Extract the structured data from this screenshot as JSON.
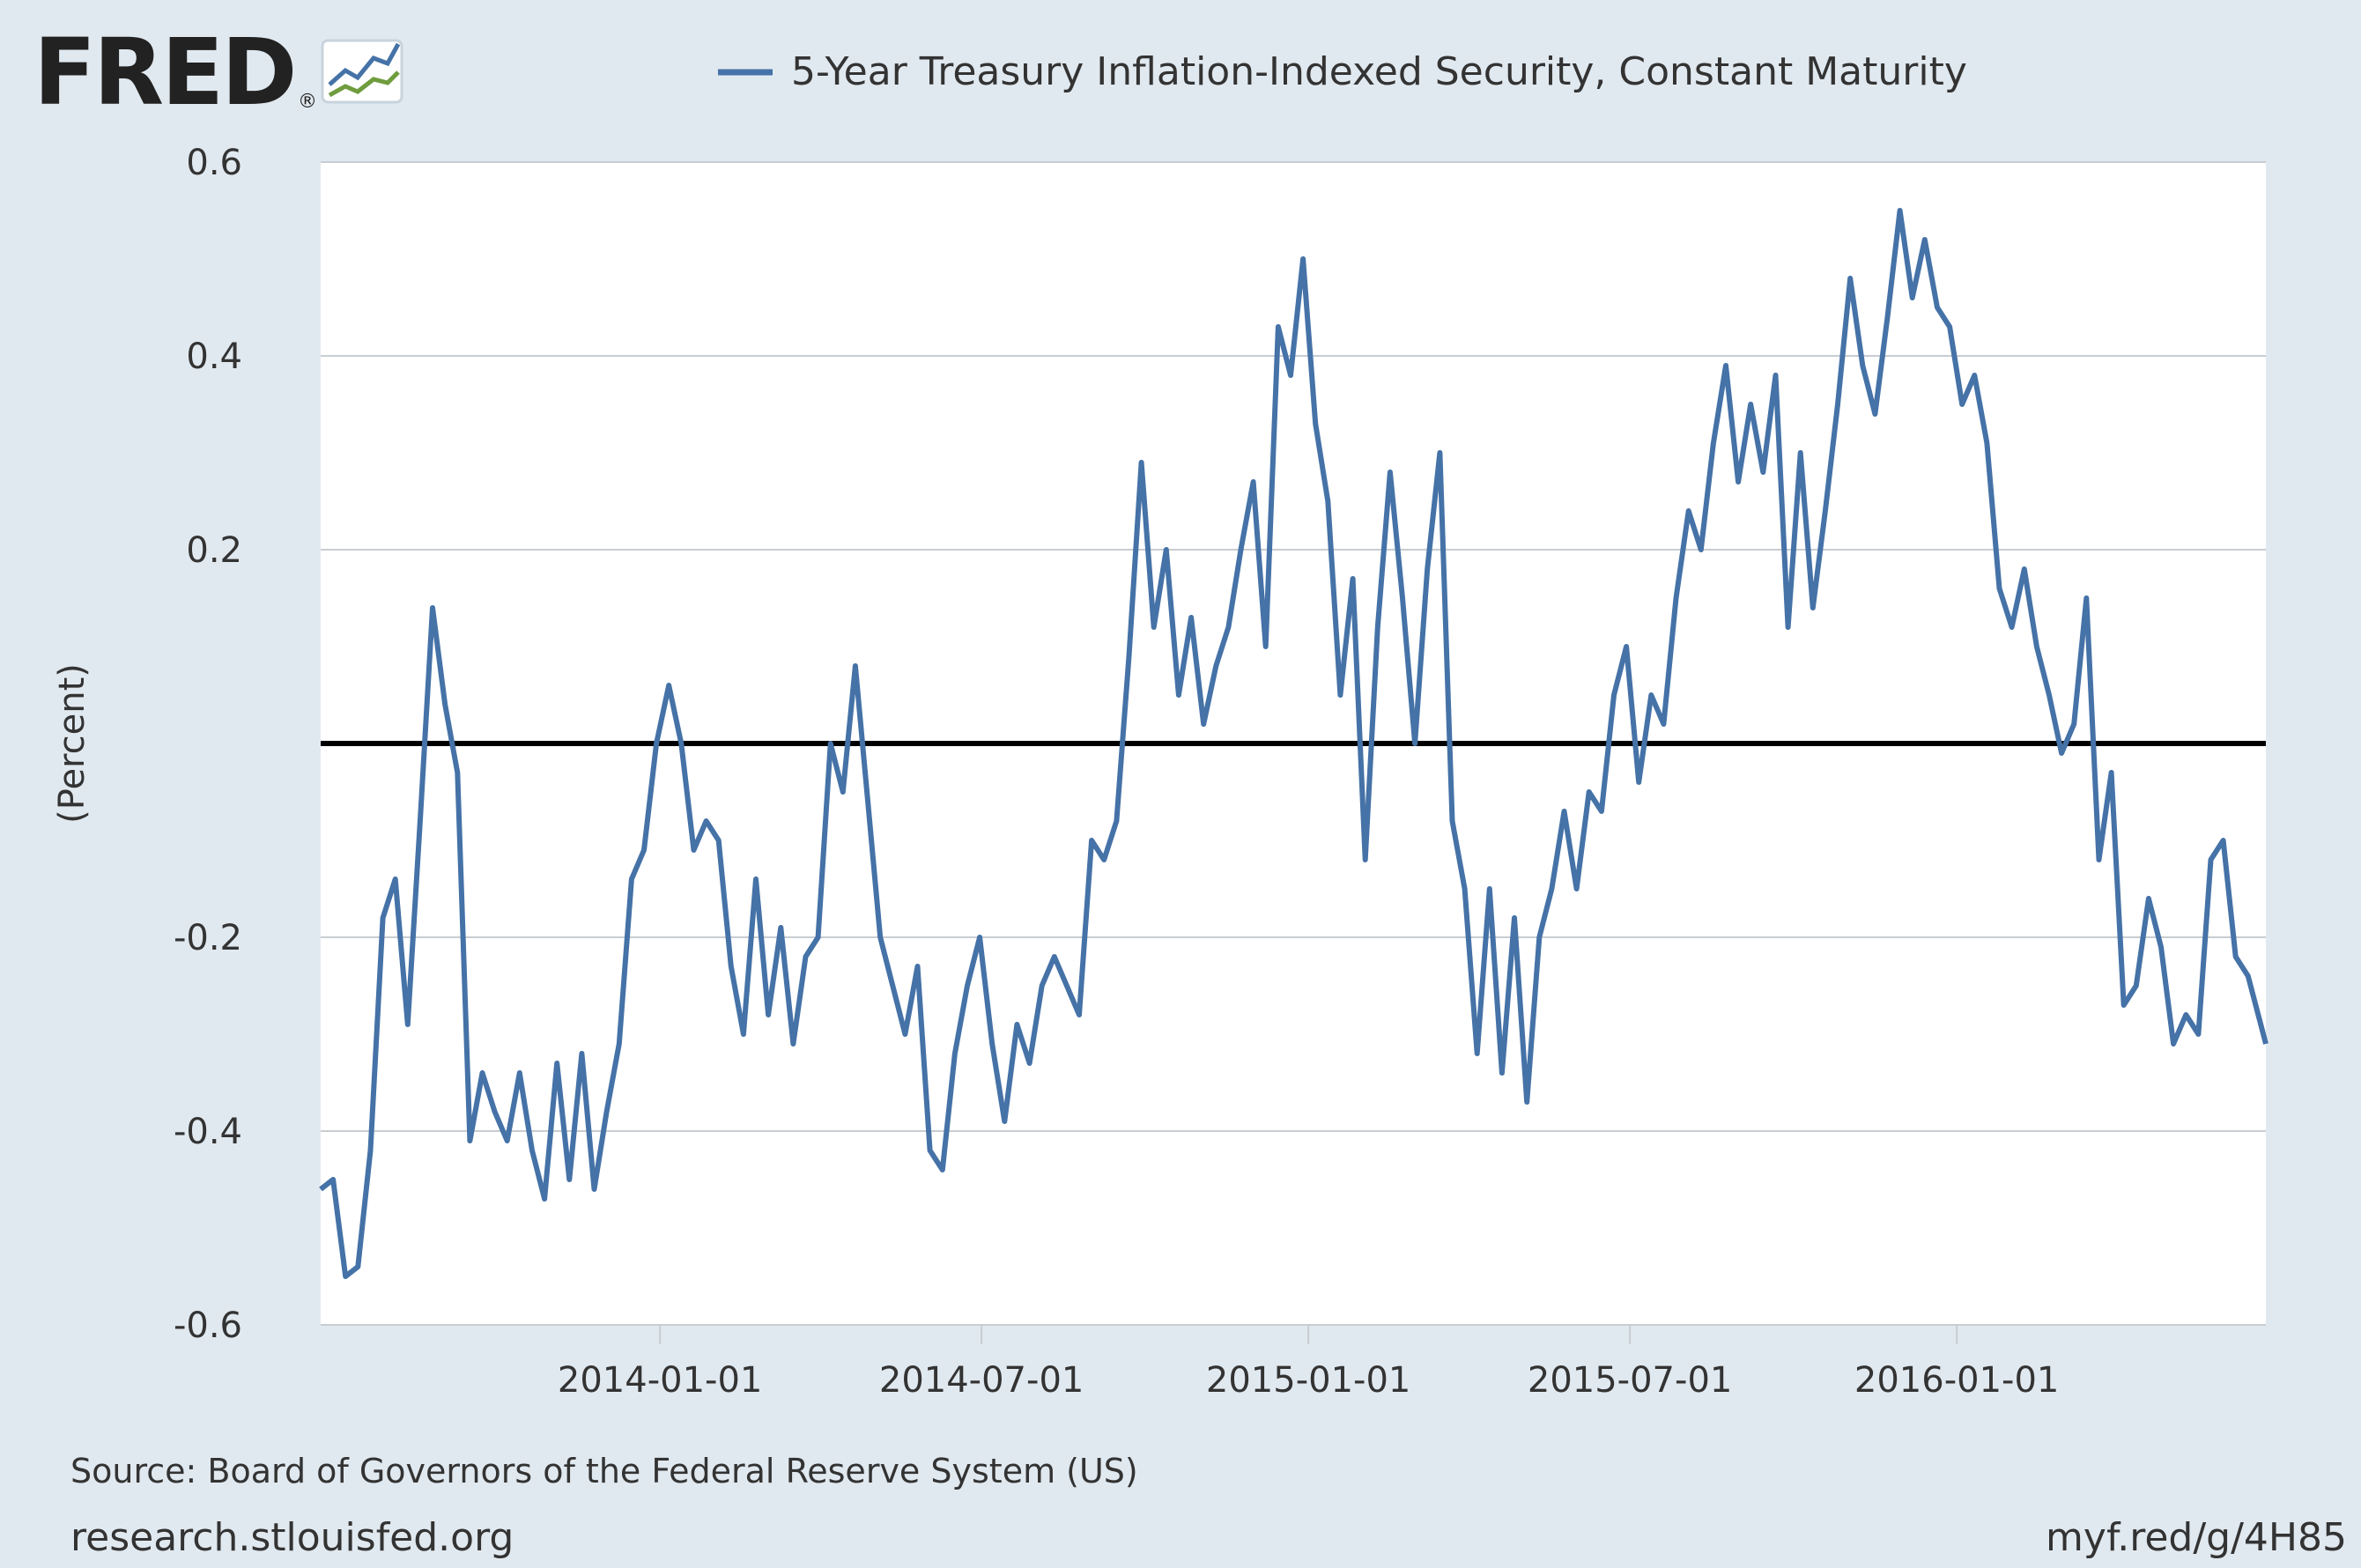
{
  "brand": {
    "name": "FRED",
    "registered_mark": "®"
  },
  "legend": {
    "label": "5-Year Treasury Inflation-Indexed Security, Constant Maturity",
    "color": "#4572a7"
  },
  "source": "Source: Board of Governors of the Federal Reserve System (US)",
  "footer_left": "research.stlouisfed.org",
  "footer_right": "myf.red/g/4H85",
  "chart_data": {
    "type": "line",
    "xlabel": "",
    "ylabel": "(Percent)",
    "ylim": [
      -0.6,
      0.6
    ],
    "yticks": [
      -0.6,
      -0.4,
      -0.2,
      0.2,
      0.4,
      0.6
    ],
    "ytick_labels": [
      "-0.6",
      "-0.4",
      "-0.2",
      "0.2",
      "0.4",
      "0.6"
    ],
    "xlim": [
      "2013-06-24",
      "2016-06-23"
    ],
    "xticks": [
      "2014-01-01",
      "2014-07-01",
      "2015-01-01",
      "2015-07-01",
      "2016-01-01"
    ],
    "zero_line": 0,
    "grid": true,
    "legend_position": "top",
    "series": [
      {
        "color": "#4572a7",
        "points": [
          [
            "2013-06-24",
            -0.46
          ],
          [
            "2013-07-01",
            -0.45
          ],
          [
            "2013-07-08",
            -0.55
          ],
          [
            "2013-07-15",
            -0.54
          ],
          [
            "2013-07-22",
            -0.42
          ],
          [
            "2013-07-29",
            -0.18
          ],
          [
            "2013-08-05",
            -0.14
          ],
          [
            "2013-08-12",
            -0.29
          ],
          [
            "2013-08-19",
            -0.08
          ],
          [
            "2013-08-26",
            0.14
          ],
          [
            "2013-09-02",
            0.04
          ],
          [
            "2013-09-09",
            -0.03
          ],
          [
            "2013-09-16",
            -0.41
          ],
          [
            "2013-09-23",
            -0.34
          ],
          [
            "2013-09-30",
            -0.38
          ],
          [
            "2013-10-07",
            -0.41
          ],
          [
            "2013-10-14",
            -0.34
          ],
          [
            "2013-10-21",
            -0.42
          ],
          [
            "2013-10-28",
            -0.47
          ],
          [
            "2013-11-04",
            -0.33
          ],
          [
            "2013-11-11",
            -0.45
          ],
          [
            "2013-11-18",
            -0.32
          ],
          [
            "2013-11-25",
            -0.46
          ],
          [
            "2013-12-02",
            -0.38
          ],
          [
            "2013-12-09",
            -0.31
          ],
          [
            "2013-12-16",
            -0.14
          ],
          [
            "2013-12-23",
            -0.11
          ],
          [
            "2013-12-30",
            0.0
          ],
          [
            "2014-01-06",
            0.06
          ],
          [
            "2014-01-13",
            0.0
          ],
          [
            "2014-01-20",
            -0.11
          ],
          [
            "2014-01-27",
            -0.08
          ],
          [
            "2014-02-03",
            -0.1
          ],
          [
            "2014-02-10",
            -0.23
          ],
          [
            "2014-02-17",
            -0.3
          ],
          [
            "2014-02-24",
            -0.14
          ],
          [
            "2014-03-03",
            -0.28
          ],
          [
            "2014-03-10",
            -0.19
          ],
          [
            "2014-03-17",
            -0.31
          ],
          [
            "2014-03-24",
            -0.22
          ],
          [
            "2014-03-31",
            -0.2
          ],
          [
            "2014-04-07",
            0.0
          ],
          [
            "2014-04-14",
            -0.05
          ],
          [
            "2014-04-21",
            0.08
          ],
          [
            "2014-04-28",
            -0.06
          ],
          [
            "2014-05-05",
            -0.2
          ],
          [
            "2014-05-12",
            -0.25
          ],
          [
            "2014-05-19",
            -0.3
          ],
          [
            "2014-05-26",
            -0.23
          ],
          [
            "2014-06-02",
            -0.42
          ],
          [
            "2014-06-09",
            -0.44
          ],
          [
            "2014-06-16",
            -0.32
          ],
          [
            "2014-06-23",
            -0.25
          ],
          [
            "2014-06-30",
            -0.2
          ],
          [
            "2014-07-07",
            -0.31
          ],
          [
            "2014-07-14",
            -0.39
          ],
          [
            "2014-07-21",
            -0.29
          ],
          [
            "2014-07-28",
            -0.33
          ],
          [
            "2014-08-04",
            -0.25
          ],
          [
            "2014-08-11",
            -0.22
          ],
          [
            "2014-08-18",
            -0.25
          ],
          [
            "2014-08-25",
            -0.28
          ],
          [
            "2014-09-01",
            -0.1
          ],
          [
            "2014-09-08",
            -0.12
          ],
          [
            "2014-09-15",
            -0.08
          ],
          [
            "2014-09-22",
            0.09
          ],
          [
            "2014-09-29",
            0.29
          ],
          [
            "2014-10-06",
            0.12
          ],
          [
            "2014-10-13",
            0.2
          ],
          [
            "2014-10-20",
            0.05
          ],
          [
            "2014-10-27",
            0.13
          ],
          [
            "2014-11-03",
            0.02
          ],
          [
            "2014-11-10",
            0.08
          ],
          [
            "2014-11-17",
            0.12
          ],
          [
            "2014-11-24",
            0.2
          ],
          [
            "2014-12-01",
            0.27
          ],
          [
            "2014-12-08",
            0.1
          ],
          [
            "2014-12-15",
            0.43
          ],
          [
            "2014-12-22",
            0.38
          ],
          [
            "2014-12-29",
            0.5
          ],
          [
            "2015-01-05",
            0.33
          ],
          [
            "2015-01-12",
            0.25
          ],
          [
            "2015-01-19",
            0.05
          ],
          [
            "2015-01-26",
            0.17
          ],
          [
            "2015-02-02",
            -0.12
          ],
          [
            "2015-02-09",
            0.12
          ],
          [
            "2015-02-16",
            0.28
          ],
          [
            "2015-02-23",
            0.15
          ],
          [
            "2015-03-02",
            0.0
          ],
          [
            "2015-03-09",
            0.18
          ],
          [
            "2015-03-16",
            0.3
          ],
          [
            "2015-03-23",
            -0.08
          ],
          [
            "2015-03-30",
            -0.15
          ],
          [
            "2015-04-06",
            -0.32
          ],
          [
            "2015-04-13",
            -0.15
          ],
          [
            "2015-04-20",
            -0.34
          ],
          [
            "2015-04-27",
            -0.18
          ],
          [
            "2015-05-04",
            -0.37
          ],
          [
            "2015-05-11",
            -0.2
          ],
          [
            "2015-05-18",
            -0.15
          ],
          [
            "2015-05-25",
            -0.07
          ],
          [
            "2015-06-01",
            -0.15
          ],
          [
            "2015-06-08",
            -0.05
          ],
          [
            "2015-06-15",
            -0.07
          ],
          [
            "2015-06-22",
            0.05
          ],
          [
            "2015-06-29",
            0.1
          ],
          [
            "2015-07-06",
            -0.04
          ],
          [
            "2015-07-13",
            0.05
          ],
          [
            "2015-07-20",
            0.02
          ],
          [
            "2015-07-27",
            0.15
          ],
          [
            "2015-08-03",
            0.24
          ],
          [
            "2015-08-10",
            0.2
          ],
          [
            "2015-08-17",
            0.31
          ],
          [
            "2015-08-24",
            0.39
          ],
          [
            "2015-08-31",
            0.27
          ],
          [
            "2015-09-07",
            0.35
          ],
          [
            "2015-09-14",
            0.28
          ],
          [
            "2015-09-21",
            0.38
          ],
          [
            "2015-09-28",
            0.12
          ],
          [
            "2015-10-05",
            0.3
          ],
          [
            "2015-10-12",
            0.14
          ],
          [
            "2015-10-19",
            0.24
          ],
          [
            "2015-10-26",
            0.35
          ],
          [
            "2015-11-02",
            0.48
          ],
          [
            "2015-11-09",
            0.39
          ],
          [
            "2015-11-16",
            0.34
          ],
          [
            "2015-11-23",
            0.44
          ],
          [
            "2015-11-30",
            0.55
          ],
          [
            "2015-12-07",
            0.46
          ],
          [
            "2015-12-14",
            0.52
          ],
          [
            "2015-12-21",
            0.45
          ],
          [
            "2015-12-28",
            0.43
          ],
          [
            "2016-01-04",
            0.35
          ],
          [
            "2016-01-11",
            0.38
          ],
          [
            "2016-01-18",
            0.31
          ],
          [
            "2016-01-25",
            0.16
          ],
          [
            "2016-02-01",
            0.12
          ],
          [
            "2016-02-08",
            0.18
          ],
          [
            "2016-02-15",
            0.1
          ],
          [
            "2016-02-22",
            0.05
          ],
          [
            "2016-02-29",
            -0.01
          ],
          [
            "2016-03-07",
            0.02
          ],
          [
            "2016-03-14",
            0.15
          ],
          [
            "2016-03-21",
            -0.12
          ],
          [
            "2016-03-28",
            -0.03
          ],
          [
            "2016-04-04",
            -0.27
          ],
          [
            "2016-04-11",
            -0.25
          ],
          [
            "2016-04-18",
            -0.16
          ],
          [
            "2016-04-25",
            -0.21
          ],
          [
            "2016-05-02",
            -0.31
          ],
          [
            "2016-05-09",
            -0.28
          ],
          [
            "2016-05-16",
            -0.3
          ],
          [
            "2016-05-23",
            -0.12
          ],
          [
            "2016-05-30",
            -0.1
          ],
          [
            "2016-06-06",
            -0.22
          ],
          [
            "2016-06-13",
            -0.24
          ],
          [
            "2016-06-23",
            -0.31
          ]
        ]
      }
    ]
  }
}
